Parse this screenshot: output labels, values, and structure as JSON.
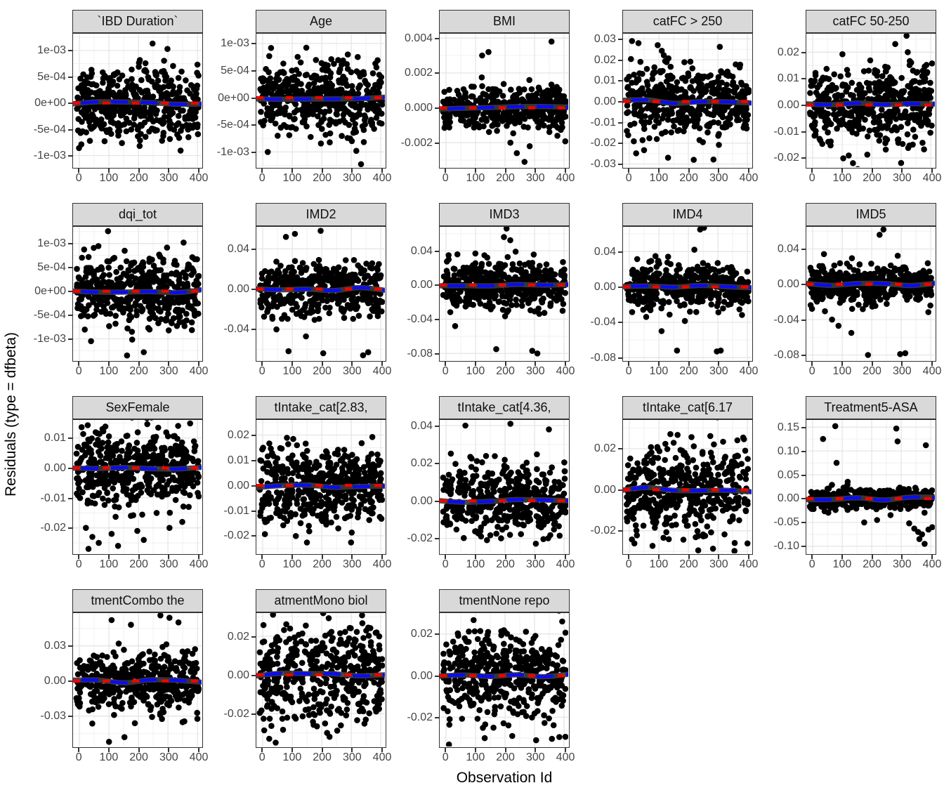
{
  "figure": {
    "x_axis_title": "Observation Id",
    "y_axis_title": "Residuals (type = dfbeta)"
  },
  "colors": {
    "point": "#000000",
    "smooth_band": "#3A3A3A",
    "reference_red": "#F50000",
    "smooth_blue": "#0B0BF5",
    "strip_fill": "#D9D9D9",
    "panel_border": "#333333",
    "grid_major": "#E5E5E5",
    "grid_minor": "#F2F2F2",
    "axis_text": "#454545"
  },
  "chart_data": {
    "type": "scatter",
    "grid": "on",
    "layout": {
      "rows": 4,
      "cols": 5,
      "n_facets": 18
    },
    "xlabel": "Observation Id",
    "ylabel": "Residuals (type = dfbeta)",
    "xlim": [
      -21.5,
      414
    ],
    "x_ticks": [
      0,
      100,
      200,
      300,
      400
    ],
    "x_tick_labels": [
      "0",
      "100",
      "200",
      "300",
      "400"
    ],
    "x_data_range": [
      0,
      405
    ],
    "facets": [
      {
        "title": "`IBD Duration`",
        "y_tick_labels": [
          "1e-03",
          "5e-04",
          "0e+00",
          "-5e-04",
          "-1e-03"
        ],
        "y_ticks": [
          0.001,
          0.0005,
          0,
          -0.0005,
          -0.001
        ],
        "ylim": [
          -0.00122,
          0.00132
        ],
        "n": 470,
        "sigma": 0.00035,
        "seed": 101,
        "wave": 2.6,
        "outliers": []
      },
      {
        "title": "Age",
        "y_tick_labels": [
          "1e-03",
          "5e-04",
          "0e+00",
          "-5e-04",
          "-1e-03"
        ],
        "y_ticks": [
          0.001,
          0.0005,
          0,
          -0.0005,
          -0.001
        ],
        "ylim": [
          -0.00128,
          0.00118
        ],
        "n": 470,
        "sigma": 0.00033,
        "seed": 202,
        "wave": 2.2,
        "outliers": []
      },
      {
        "title": "BMI",
        "y_tick_labels": [
          "0.004",
          "0.002",
          "0.000",
          "-0.002"
        ],
        "y_ticks": [
          0.004,
          0.002,
          0,
          -0.002
        ],
        "ylim": [
          -0.0034,
          0.00425
        ],
        "n": 460,
        "sigma": 0.00058,
        "seed": 303,
        "wave": 2.0,
        "outliers": [
          [
            0.87,
            0.0038
          ],
          [
            0.33,
            0.003
          ],
          [
            0.38,
            0.0032
          ],
          [
            0.6,
            -0.0026
          ],
          [
            0.66,
            -0.0031
          ],
          [
            0.55,
            -0.002
          ],
          [
            0.7,
            -0.0022
          ]
        ]
      },
      {
        "title": "catFC > 250",
        "y_tick_labels": [
          "0.03",
          "0.02",
          "0.01",
          "0.00",
          "-0.01",
          "-0.02",
          "-0.03"
        ],
        "y_ticks": [
          0.03,
          0.02,
          0.01,
          0,
          -0.01,
          -0.02,
          -0.03
        ],
        "ylim": [
          -0.0315,
          0.0325
        ],
        "n": 460,
        "sigma": 0.0082,
        "seed": 404,
        "wave": 2.8,
        "outliers": [
          [
            0.07,
            0.029
          ],
          [
            0.12,
            0.028
          ],
          [
            0.27,
            0.027
          ],
          [
            0.55,
            -0.028
          ],
          [
            0.35,
            -0.027
          ]
        ]
      },
      {
        "title": "catFC 50-250",
        "y_tick_labels": [
          "0.02",
          "0.01",
          "0.00",
          "-0.01",
          "-0.02"
        ],
        "y_ticks": [
          0.02,
          0.01,
          0,
          -0.01,
          -0.02
        ],
        "ylim": [
          -0.0235,
          0.027
        ],
        "n": 470,
        "sigma": 0.0078,
        "seed": 505,
        "wave": 3.2,
        "outliers": [
          [
            0.78,
            0.0262
          ]
        ]
      },
      {
        "title": "dqi_tot",
        "y_tick_labels": [
          "1e-03",
          "5e-04",
          "0e+00",
          "-5e-04",
          "-1e-03"
        ],
        "y_ticks": [
          0.001,
          0.0005,
          0,
          -0.0005,
          -0.001
        ],
        "ylim": [
          -0.00145,
          0.00135
        ],
        "n": 470,
        "sigma": 0.00038,
        "seed": 606,
        "wave": 2.6,
        "outliers": [
          [
            0.42,
            -0.00135
          ],
          [
            0.55,
            -0.00128
          ]
        ]
      },
      {
        "title": "IMD2",
        "y_tick_labels": [
          "0.04",
          "0.00",
          "-0.04"
        ],
        "y_ticks": [
          0.04,
          0,
          -0.04
        ],
        "ylim": [
          -0.071,
          0.062
        ],
        "n": 440,
        "sigma": 0.0125,
        "seed": 707,
        "wave": 2.6,
        "outliers": [
          [
            0.25,
            -0.062
          ],
          [
            0.52,
            -0.064
          ],
          [
            0.83,
            -0.066
          ],
          [
            0.87,
            -0.063
          ],
          [
            0.3,
            0.055
          ],
          [
            0.5,
            0.058
          ],
          [
            0.23,
            0.052
          ]
        ]
      },
      {
        "title": "IMD3",
        "y_tick_labels": [
          "0.04",
          "0.00",
          "-0.04",
          "-0.08"
        ],
        "y_ticks": [
          0.04,
          0,
          -0.04,
          -0.08
        ],
        "ylim": [
          -0.088,
          0.068
        ],
        "n": 440,
        "sigma": 0.0135,
        "seed": 808,
        "wave": 2.4,
        "outliers": [
          [
            0.52,
            0.066
          ],
          [
            0.5,
            0.056
          ],
          [
            0.44,
            -0.075
          ],
          [
            0.72,
            -0.077
          ],
          [
            0.76,
            -0.08
          ],
          [
            0.12,
            -0.048
          ]
        ]
      },
      {
        "title": "IMD4",
        "y_tick_labels": [
          "0.04",
          "0.00",
          "-0.04",
          "-0.08"
        ],
        "y_ticks": [
          0.04,
          0,
          -0.04,
          -0.08
        ],
        "ylim": [
          -0.083,
          0.068
        ],
        "n": 440,
        "sigma": 0.013,
        "seed": 909,
        "wave": 2.2,
        "outliers": [
          [
            0.6,
            0.065
          ],
          [
            0.63,
            0.067
          ],
          [
            0.42,
            -0.072
          ],
          [
            0.73,
            -0.073
          ],
          [
            0.76,
            -0.072
          ],
          [
            0.3,
            -0.05
          ]
        ]
      },
      {
        "title": "IMD5",
        "y_tick_labels": [
          "0.04",
          "0.00",
          "-0.04",
          "-0.08"
        ],
        "y_ticks": [
          0.04,
          0,
          -0.04,
          -0.08
        ],
        "ylim": [
          -0.086,
          0.065
        ],
        "n": 440,
        "sigma": 0.0105,
        "seed": 1010,
        "wave": 2.2,
        "outliers": [
          [
            0.6,
            0.062
          ],
          [
            0.57,
            0.056
          ],
          [
            0.48,
            -0.08
          ],
          [
            0.73,
            -0.079
          ],
          [
            0.77,
            -0.078
          ],
          [
            0.35,
            -0.055
          ],
          [
            0.25,
            -0.047
          ],
          [
            0.2,
            -0.04
          ]
        ]
      },
      {
        "title": "SexFemale",
        "y_tick_labels": [
          "0.01",
          "0.00",
          "-0.01",
          "-0.02"
        ],
        "y_ticks": [
          0.01,
          0,
          -0.01,
          -0.02
        ],
        "ylim": [
          -0.0285,
          0.016
        ],
        "n": 470,
        "sigma": 0.006,
        "seed": 1111,
        "wave": 3.0,
        "outliers": [
          [
            0.1,
            -0.02
          ],
          [
            0.15,
            -0.023
          ],
          [
            0.2,
            -0.025
          ],
          [
            0.3,
            -0.022
          ],
          [
            0.5,
            -0.021
          ],
          [
            0.55,
            -0.024
          ],
          [
            0.75,
            -0.02
          ],
          [
            0.85,
            -0.018
          ],
          [
            0.12,
            -0.027
          ],
          [
            0.35,
            -0.026
          ],
          [
            0.65,
            -0.015
          ],
          [
            0.9,
            -0.013
          ],
          [
            0.45,
            -0.016
          ]
        ]
      },
      {
        "title": "tIntake_cat[2.83,",
        "y_tick_labels": [
          "0.02",
          "0.01",
          "0.00",
          "-0.01",
          "-0.02"
        ],
        "y_ticks": [
          0.02,
          0.01,
          0,
          -0.01,
          -0.02
        ],
        "ylim": [
          -0.027,
          0.026
        ],
        "n": 470,
        "sigma": 0.0078,
        "seed": 1212,
        "wave": 3.4,
        "outliers": []
      },
      {
        "title": "tIntake_cat[4.36,",
        "y_tick_labels": [
          "0.04",
          "0.02",
          "0.00",
          "-0.02"
        ],
        "y_ticks": [
          0.04,
          0.02,
          0,
          -0.02
        ],
        "ylim": [
          -0.028,
          0.043
        ],
        "n": 460,
        "sigma": 0.009,
        "seed": 1313,
        "wave": 2.6,
        "outliers": [
          [
            0.2,
            0.04
          ],
          [
            0.55,
            0.041
          ],
          [
            0.85,
            0.038
          ]
        ]
      },
      {
        "title": "tIntake_cat[6.17",
        "y_tick_labels": [
          "0.02",
          "0.00",
          "-0.02"
        ],
        "y_ticks": [
          0.02,
          0,
          -0.02
        ],
        "ylim": [
          -0.031,
          0.034
        ],
        "n": 460,
        "sigma": 0.0105,
        "seed": 1414,
        "wave": 3.8,
        "outliers": []
      },
      {
        "title": "Treatment5-ASA",
        "y_tick_labels": [
          "0.15",
          "0.10",
          "0.05",
          "0.00",
          "-0.05",
          "-0.10"
        ],
        "y_ticks": [
          0.15,
          0.1,
          0.05,
          0,
          -0.05,
          -0.1
        ],
        "ylim": [
          -0.115,
          0.165
        ],
        "n": 430,
        "sigma": 0.0105,
        "seed": 1515,
        "wave": 2.2,
        "outliers": [
          [
            0.13,
            0.125
          ],
          [
            0.225,
            0.152
          ],
          [
            0.235,
            0.075
          ],
          [
            0.7,
            0.147
          ],
          [
            0.71,
            0.12
          ],
          [
            0.93,
            0.112
          ],
          [
            0.8,
            -0.052
          ],
          [
            0.84,
            -0.063
          ],
          [
            0.87,
            -0.07
          ],
          [
            0.9,
            -0.075
          ],
          [
            0.92,
            -0.095
          ],
          [
            0.88,
            -0.085
          ],
          [
            0.95,
            -0.065
          ],
          [
            0.55,
            -0.045
          ],
          [
            0.45,
            -0.05
          ],
          [
            0.98,
            -0.06
          ]
        ]
      },
      {
        "title": "tmentCombo the",
        "y_tick_labels": [
          "0.03",
          "0.00",
          "-0.03"
        ],
        "y_ticks": [
          0.03,
          0,
          -0.03
        ],
        "ylim": [
          -0.056,
          0.058
        ],
        "n": 440,
        "sigma": 0.0125,
        "seed": 1616,
        "wave": 2.8,
        "outliers": [
          [
            0.3,
            0.052
          ],
          [
            0.45,
            0.048
          ],
          [
            0.68,
            0.056
          ],
          [
            0.75,
            0.054
          ],
          [
            0.82,
            0.05
          ],
          [
            0.4,
            -0.048
          ],
          [
            0.28,
            -0.052
          ]
        ]
      },
      {
        "title": "atmentMono biol",
        "y_tick_labels": [
          "0.02",
          "0.00",
          "-0.02"
        ],
        "y_ticks": [
          0.02,
          0,
          -0.02
        ],
        "ylim": [
          -0.037,
          0.032
        ],
        "n": 460,
        "sigma": 0.0125,
        "seed": 1717,
        "wave": 2.4,
        "outliers": [
          [
            0.1,
            -0.033
          ],
          [
            0.15,
            -0.035
          ],
          [
            0.55,
            -0.03
          ]
        ]
      },
      {
        "title": "tmentNone repo",
        "y_tick_labels": [
          "0.02",
          "0.00",
          "-0.02"
        ],
        "y_ticks": [
          0.02,
          0,
          -0.02
        ],
        "ylim": [
          -0.034,
          0.03
        ],
        "n": 450,
        "sigma": 0.0105,
        "seed": 1818,
        "wave": 2.6,
        "outliers": [
          [
            0.35,
            -0.03
          ],
          [
            0.75,
            -0.031
          ]
        ]
      }
    ]
  }
}
